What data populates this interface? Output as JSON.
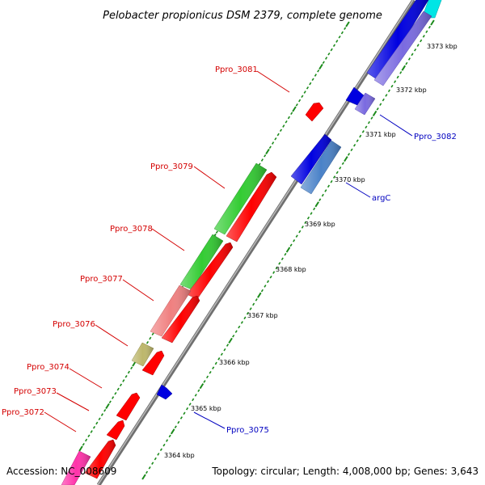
{
  "title": "Pelobacter propionicus DSM 2379, complete genome",
  "footer": {
    "accession": "Accession: NC_008609",
    "topology": "Topology: circular; Length: 4,008,000 bp; Genes: 3,643"
  },
  "colors": {
    "backbone": "#8c8c8c",
    "tick": "#1a8a1a",
    "label_red": "#d40000",
    "label_blue": "#0000c0"
  },
  "kbp_labels": [
    "3373 kbp",
    "3372 kbp",
    "3371 kbp",
    "3370 kbp",
    "3369 kbp",
    "3368 kbp",
    "3367 kbp",
    "3366 kbp",
    "3365 kbp",
    "3364 kbp"
  ],
  "gene_labels": {
    "ppro_3081": "Ppro_3081",
    "ppro_3082": "Ppro_3082",
    "ppro_3079": "Ppro_3079",
    "argC": "argC",
    "ppro_3078": "Ppro_3078",
    "ppro_3077": "Ppro_3077",
    "ppro_3076": "Ppro_3076",
    "ppro_3074": "Ppro_3074",
    "ppro_3073": "Ppro_3073",
    "ppro_3072": "Ppro_3072",
    "ppro_3075": "Ppro_3075"
  }
}
